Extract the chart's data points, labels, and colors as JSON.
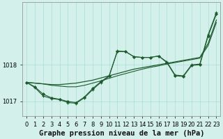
{
  "background_color": "#d4f0eb",
  "grid_color": "#aaddd6",
  "line_color": "#1e5c30",
  "xlabel": "Graphe pression niveau de la mer (hPa)",
  "xlabel_fontsize": 7.5,
  "tick_fontsize": 6,
  "ylabel_ticks": [
    1017,
    1018
  ],
  "xlim": [
    -0.5,
    23.5
  ],
  "ylim": [
    1016.6,
    1019.7
  ],
  "line1_x": [
    0,
    1,
    2,
    3,
    4,
    5,
    6,
    7,
    8,
    9,
    10,
    11,
    12,
    13,
    14,
    15,
    16,
    17,
    18,
    19,
    20,
    21,
    22,
    23
  ],
  "line1_y": [
    1017.52,
    1017.38,
    1017.15,
    1017.08,
    1017.05,
    1016.97,
    1016.95,
    1017.1,
    1017.32,
    1017.52,
    1017.68,
    1018.38,
    1018.36,
    1018.22,
    1018.2,
    1018.2,
    1018.24,
    1018.08,
    1017.72,
    1017.7,
    1018.0,
    1018.02,
    1018.82,
    1019.42
  ],
  "line2_x": [
    0,
    1,
    2,
    3,
    4,
    5,
    6,
    7,
    8,
    9,
    10,
    11,
    12,
    13,
    14,
    15,
    16,
    17,
    18,
    19,
    20,
    21,
    22,
    23
  ],
  "line2_y": [
    1017.52,
    1017.4,
    1017.2,
    1017.1,
    1017.06,
    1017.0,
    1016.97,
    1017.12,
    1017.35,
    1017.54,
    1017.7,
    1018.36,
    1018.36,
    1018.22,
    1018.2,
    1018.2,
    1018.24,
    1018.06,
    1017.7,
    1017.68,
    1017.98,
    1018.0,
    1018.78,
    1019.38
  ],
  "line3_x": [
    0,
    1,
    2,
    3,
    4,
    5,
    6,
    7,
    8,
    9,
    10,
    11,
    12,
    13,
    14,
    15,
    16,
    17,
    18,
    19,
    20,
    21,
    22,
    23
  ],
  "line3_y": [
    1017.52,
    1017.5,
    1017.48,
    1017.46,
    1017.46,
    1017.48,
    1017.5,
    1017.54,
    1017.58,
    1017.64,
    1017.7,
    1017.76,
    1017.82,
    1017.88,
    1017.92,
    1017.96,
    1018.0,
    1018.04,
    1018.08,
    1018.12,
    1018.16,
    1018.2,
    1018.58,
    1019.22
  ],
  "line4_x": [
    0,
    1,
    2,
    3,
    4,
    5,
    6,
    7,
    8,
    9,
    10,
    11,
    12,
    13,
    14,
    15,
    16,
    17,
    18,
    19,
    20,
    21,
    22,
    23
  ],
  "line4_y": [
    1017.52,
    1017.5,
    1017.48,
    1017.44,
    1017.42,
    1017.4,
    1017.4,
    1017.44,
    1017.5,
    1017.56,
    1017.63,
    1017.7,
    1017.76,
    1017.82,
    1017.88,
    1017.93,
    1017.97,
    1018.02,
    1018.06,
    1018.1,
    1018.14,
    1018.18,
    1018.52,
    1019.15
  ]
}
